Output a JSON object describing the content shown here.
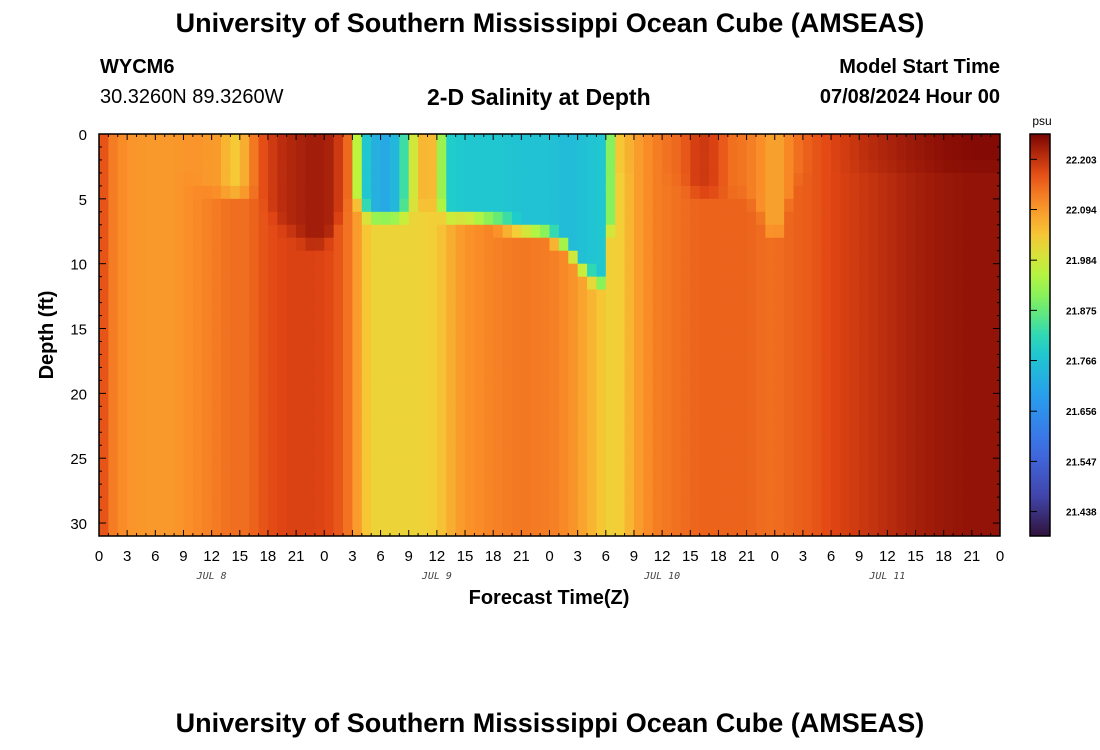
{
  "header": {
    "title": "University of Southern Mississippi Ocean Cube (AMSEAS)",
    "station_id": "WYCM6",
    "coordinates": "30.3260N  89.3260W",
    "plot_title": "2-D Salinity at Depth",
    "model_start_label": "Model Start Time",
    "model_start_value": "07/08/2024 Hour 00"
  },
  "footer": {
    "title": "University of Southern Mississippi Ocean Cube (AMSEAS)"
  },
  "chart_data": {
    "type": "heatmap",
    "title": "2-D Salinity at Depth",
    "xlabel": "Forecast Time(Z)",
    "ylabel": "Depth (ft)",
    "x_range_hours": [
      0,
      96
    ],
    "y_range_ft": [
      0,
      31
    ],
    "x_ticks": [
      "0",
      "3",
      "6",
      "9",
      "12",
      "15",
      "18",
      "21",
      "0",
      "3",
      "6",
      "9",
      "12",
      "15",
      "18",
      "21",
      "0",
      "3",
      "6",
      "9",
      "12",
      "15",
      "18",
      "21",
      "0",
      "3",
      "6",
      "9",
      "12",
      "15",
      "18",
      "21",
      "0"
    ],
    "y_ticks": [
      0,
      5,
      10,
      15,
      20,
      25,
      30
    ],
    "day_labels": [
      {
        "label": "JUL 8",
        "hour": 12
      },
      {
        "label": "JUL 9",
        "hour": 36
      },
      {
        "label": "JUL 10",
        "hour": 60
      },
      {
        "label": "JUL 11",
        "hour": 84
      }
    ],
    "colorbar": {
      "unit": "psu",
      "min": 21.385,
      "max": 22.258,
      "ticks": [
        "22.203",
        "22.094",
        "21.984",
        "21.875",
        "21.766",
        "21.656",
        "21.547",
        "21.438"
      ]
    },
    "columns": [
      {
        "hour": 0,
        "deep": 22.2,
        "surface": 22.2,
        "mix_depth": 4
      },
      {
        "hour": 1,
        "deep": 22.13,
        "surface": 22.13,
        "mix_depth": 3
      },
      {
        "hour": 2,
        "deep": 22.12,
        "surface": 22.12,
        "mix_depth": 2
      },
      {
        "hour": 3,
        "deep": 22.1,
        "surface": 22.1,
        "mix_depth": 2
      },
      {
        "hour": 5,
        "deep": 22.095,
        "surface": 22.095,
        "mix_depth": 2
      },
      {
        "hour": 8,
        "deep": 22.095,
        "surface": 22.095,
        "mix_depth": 2
      },
      {
        "hour": 10,
        "deep": 22.11,
        "surface": 22.1,
        "mix_depth": 3
      },
      {
        "hour": 13,
        "deep": 22.13,
        "surface": 22.09,
        "mix_depth": 4
      },
      {
        "hour": 14,
        "deep": 22.14,
        "surface": 22.03,
        "mix_depth": 4
      },
      {
        "hour": 15,
        "deep": 22.14,
        "surface": 22.04,
        "mix_depth": 4
      },
      {
        "hour": 16,
        "deep": 22.14,
        "surface": 22.1,
        "mix_depth": 4
      },
      {
        "hour": 17,
        "deep": 22.16,
        "surface": 22.16,
        "mix_depth": 4
      },
      {
        "hour": 19,
        "deep": 22.18,
        "surface": 22.205,
        "mix_depth": 6
      },
      {
        "hour": 21,
        "deep": 22.185,
        "surface": 22.22,
        "mix_depth": 7
      },
      {
        "hour": 23,
        "deep": 22.185,
        "surface": 22.23,
        "mix_depth": 8
      },
      {
        "hour": 25,
        "deep": 22.175,
        "surface": 22.22,
        "mix_depth": 7
      },
      {
        "hour": 26,
        "deep": 22.15,
        "surface": 22.17,
        "mix_depth": 5
      },
      {
        "hour": 27,
        "deep": 22.12,
        "surface": 22.12,
        "mix_depth": 4
      },
      {
        "hour": 28,
        "deep": 22.06,
        "surface": 21.8,
        "mix_depth": 5
      },
      {
        "hour": 29,
        "deep": 22.02,
        "surface": 21.76,
        "mix_depth": 5.5
      },
      {
        "hour": 30,
        "deep": 22.02,
        "surface": 21.7,
        "mix_depth": 5.5
      },
      {
        "hour": 32,
        "deep": 22.02,
        "surface": 21.76,
        "mix_depth": 5.5
      },
      {
        "hour": 34,
        "deep": 22.02,
        "surface": 22.06,
        "mix_depth": 5
      },
      {
        "hour": 36,
        "deep": 22.03,
        "surface": 22.05,
        "mix_depth": 5
      },
      {
        "hour": 37,
        "deep": 22.06,
        "surface": 21.8,
        "mix_depth": 5.5
      },
      {
        "hour": 39,
        "deep": 22.1,
        "surface": 21.78,
        "mix_depth": 5.5
      },
      {
        "hour": 42,
        "deep": 22.12,
        "surface": 21.78,
        "mix_depth": 6
      },
      {
        "hour": 45,
        "deep": 22.13,
        "surface": 21.77,
        "mix_depth": 6.5
      },
      {
        "hour": 48,
        "deep": 22.125,
        "surface": 21.77,
        "mix_depth": 7
      },
      {
        "hour": 50,
        "deep": 22.11,
        "surface": 21.75,
        "mix_depth": 8
      },
      {
        "hour": 52,
        "deep": 22.07,
        "surface": 21.77,
        "mix_depth": 10
      },
      {
        "hour": 54,
        "deep": 22.03,
        "surface": 21.78,
        "mix_depth": 11
      },
      {
        "hour": 55,
        "deep": 22.02,
        "surface": 22.03,
        "mix_depth": 2
      },
      {
        "hour": 56,
        "deep": 22.04,
        "surface": 22.05,
        "mix_depth": 2
      },
      {
        "hour": 57,
        "deep": 22.08,
        "surface": 22.08,
        "mix_depth": 2
      },
      {
        "hour": 59,
        "deep": 22.12,
        "surface": 22.12,
        "mix_depth": 2
      },
      {
        "hour": 62,
        "deep": 22.14,
        "surface": 22.15,
        "mix_depth": 3
      },
      {
        "hour": 64,
        "deep": 22.15,
        "surface": 22.2,
        "mix_depth": 4
      },
      {
        "hour": 66,
        "deep": 22.15,
        "surface": 22.18,
        "mix_depth": 4
      },
      {
        "hour": 67,
        "deep": 22.15,
        "surface": 22.14,
        "mix_depth": 4
      },
      {
        "hour": 69,
        "deep": 22.15,
        "surface": 22.13,
        "mix_depth": 4
      },
      {
        "hour": 71,
        "deep": 22.14,
        "surface": 22.1,
        "mix_depth": 6
      },
      {
        "hour": 72,
        "deep": 22.14,
        "surface": 22.07,
        "mix_depth": 8
      },
      {
        "hour": 73,
        "deep": 22.145,
        "surface": 22.1,
        "mix_depth": 6
      },
      {
        "hour": 74,
        "deep": 22.15,
        "surface": 22.13,
        "mix_depth": 3
      },
      {
        "hour": 76,
        "deep": 22.16,
        "surface": 22.16,
        "mix_depth": 2
      },
      {
        "hour": 78,
        "deep": 22.18,
        "surface": 22.18,
        "mix_depth": 2
      },
      {
        "hour": 82,
        "deep": 22.2,
        "surface": 22.21,
        "mix_depth": 2
      },
      {
        "hour": 86,
        "deep": 22.22,
        "surface": 22.23,
        "mix_depth": 2
      },
      {
        "hour": 90,
        "deep": 22.235,
        "surface": 22.245,
        "mix_depth": 2
      },
      {
        "hour": 93,
        "deep": 22.24,
        "surface": 22.25,
        "mix_depth": 2
      },
      {
        "hour": 96,
        "deep": 22.24,
        "surface": 22.25,
        "mix_depth": 2
      }
    ]
  }
}
